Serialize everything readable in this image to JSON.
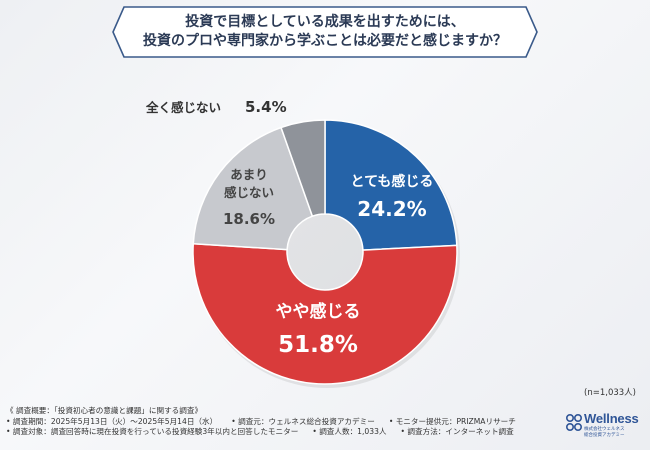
{
  "title": {
    "line1": "投資で目標としている成果を出すためには、",
    "line2": "投資のプロや専門家から学ぶことは必要だと感じますか？"
  },
  "chart_data": {
    "type": "pie",
    "donut": true,
    "slices": [
      {
        "label": "とても感じる",
        "value": 24.2,
        "value_text": "24.2%",
        "color": "#2563a8"
      },
      {
        "label": "やや感じる",
        "value": 51.8,
        "value_text": "51.8%",
        "color": "#d93b3b"
      },
      {
        "label": "あまり感じない",
        "value": 18.6,
        "value_text": "18.6%",
        "color": "#c7c9ce"
      },
      {
        "label": "全く感じない",
        "value": 5.4,
        "value_text": "5.4%",
        "color": "#8f939a"
      }
    ]
  },
  "note": "(n=1,033人)",
  "footer": {
    "row1": "《 調査概要：「投資初心者の意識と課題」に関する調査》",
    "row2": [
      "• 調査期間：2025年5月13日（火）〜2025年5月14日（水）",
      "• 調査元：ウェルネス総合投資アカデミー",
      "• モニター提供元：PRIZMAリサーチ"
    ],
    "row3": [
      "• 調査対象：調査回答時に現在投資を行っている投資経験3年以内と回答したモニター",
      "• 調査人数：1,033人",
      "• 調査方法：インターネット調査"
    ]
  },
  "logo": {
    "word": "Wellness",
    "sub1": "株式会社ウェルネス",
    "sub2": "総合投資アカデミー"
  }
}
